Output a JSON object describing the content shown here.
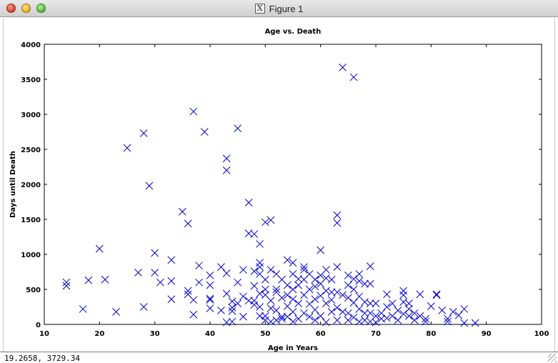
{
  "window": {
    "title": "Figure 1",
    "status_coords": "19.2658,  3729.34"
  },
  "chart_data": {
    "type": "scatter",
    "title": "Age vs. Death",
    "xlabel": "Age in Years",
    "ylabel": "Days until Death",
    "xlim": [
      10,
      100
    ],
    "ylim": [
      0,
      4000
    ],
    "xticks": [
      10,
      20,
      30,
      40,
      50,
      60,
      70,
      80,
      90,
      100
    ],
    "yticks": [
      0,
      500,
      1000,
      1500,
      2000,
      2500,
      3000,
      3500,
      4000
    ],
    "grid": false,
    "marker": "x",
    "color": "#0000cc",
    "series": [
      {
        "points": [
          [
            14,
            600
          ],
          [
            14,
            550
          ],
          [
            17,
            220
          ],
          [
            18,
            630
          ],
          [
            20,
            1080
          ],
          [
            21,
            640
          ],
          [
            23,
            180
          ],
          [
            25,
            2520
          ],
          [
            27,
            740
          ],
          [
            28,
            2730
          ],
          [
            28,
            250
          ],
          [
            29,
            1980
          ],
          [
            30,
            1020
          ],
          [
            30,
            740
          ],
          [
            31,
            600
          ],
          [
            33,
            920
          ],
          [
            33,
            620
          ],
          [
            33,
            360
          ],
          [
            35,
            1610
          ],
          [
            36,
            1440
          ],
          [
            36,
            480
          ],
          [
            36,
            430
          ],
          [
            37,
            3040
          ],
          [
            37,
            350
          ],
          [
            37,
            140
          ],
          [
            38,
            840
          ],
          [
            38,
            600
          ],
          [
            39,
            2750
          ],
          [
            40,
            700
          ],
          [
            40,
            560
          ],
          [
            40,
            370
          ],
          [
            40,
            350
          ],
          [
            40,
            230
          ],
          [
            42,
            820
          ],
          [
            42,
            200
          ],
          [
            43,
            2370
          ],
          [
            43,
            2200
          ],
          [
            43,
            730
          ],
          [
            43,
            440
          ],
          [
            43,
            30
          ],
          [
            44,
            330
          ],
          [
            44,
            240
          ],
          [
            44,
            190
          ],
          [
            44,
            40
          ],
          [
            45,
            2800
          ],
          [
            45,
            600
          ],
          [
            45,
            300
          ],
          [
            46,
            780
          ],
          [
            46,
            400
          ],
          [
            46,
            110
          ],
          [
            47,
            1740
          ],
          [
            47,
            1300
          ],
          [
            47,
            340
          ],
          [
            48,
            1290
          ],
          [
            48,
            760
          ],
          [
            48,
            550
          ],
          [
            48,
            340
          ],
          [
            48,
            280
          ],
          [
            49,
            1150
          ],
          [
            49,
            880
          ],
          [
            49,
            820
          ],
          [
            49,
            720
          ],
          [
            49,
            440
          ],
          [
            49,
            250
          ],
          [
            49,
            120
          ],
          [
            50,
            1460
          ],
          [
            50,
            640
          ],
          [
            50,
            500
          ],
          [
            50,
            420
          ],
          [
            50,
            120
          ],
          [
            50,
            60
          ],
          [
            51,
            1490
          ],
          [
            51,
            780
          ],
          [
            51,
            340
          ],
          [
            51,
            230
          ],
          [
            51,
            40
          ],
          [
            52,
            720
          ],
          [
            52,
            500
          ],
          [
            52,
            460
          ],
          [
            52,
            200
          ],
          [
            52,
            60
          ],
          [
            53,
            640
          ],
          [
            53,
            380
          ],
          [
            53,
            110
          ],
          [
            53,
            80
          ],
          [
            54,
            920
          ],
          [
            54,
            560
          ],
          [
            54,
            420
          ],
          [
            54,
            260
          ],
          [
            54,
            110
          ],
          [
            55,
            880
          ],
          [
            55,
            720
          ],
          [
            55,
            500
          ],
          [
            55,
            360
          ],
          [
            55,
            180
          ],
          [
            55,
            40
          ],
          [
            56,
            650
          ],
          [
            56,
            560
          ],
          [
            56,
            300
          ],
          [
            56,
            80
          ],
          [
            57,
            820
          ],
          [
            57,
            780
          ],
          [
            57,
            640
          ],
          [
            57,
            420
          ],
          [
            57,
            160
          ],
          [
            58,
            720
          ],
          [
            58,
            500
          ],
          [
            58,
            290
          ],
          [
            58,
            110
          ],
          [
            59,
            640
          ],
          [
            59,
            540
          ],
          [
            59,
            360
          ],
          [
            59,
            210
          ],
          [
            59,
            60
          ],
          [
            60,
            1060
          ],
          [
            60,
            700
          ],
          [
            60,
            580
          ],
          [
            60,
            410
          ],
          [
            60,
            120
          ],
          [
            61,
            780
          ],
          [
            61,
            660
          ],
          [
            61,
            480
          ],
          [
            61,
            300
          ],
          [
            61,
            30
          ],
          [
            62,
            640
          ],
          [
            62,
            460
          ],
          [
            62,
            350
          ],
          [
            62,
            180
          ],
          [
            63,
            1560
          ],
          [
            63,
            1450
          ],
          [
            63,
            820
          ],
          [
            63,
            460
          ],
          [
            63,
            240
          ],
          [
            63,
            60
          ],
          [
            64,
            3670
          ],
          [
            64,
            420
          ],
          [
            64,
            180
          ],
          [
            65,
            700
          ],
          [
            65,
            560
          ],
          [
            65,
            380
          ],
          [
            65,
            160
          ],
          [
            65,
            60
          ],
          [
            66,
            3530
          ],
          [
            66,
            650
          ],
          [
            66,
            500
          ],
          [
            66,
            310
          ],
          [
            66,
            100
          ],
          [
            67,
            720
          ],
          [
            67,
            620
          ],
          [
            67,
            400
          ],
          [
            67,
            220
          ],
          [
            67,
            40
          ],
          [
            68,
            580
          ],
          [
            68,
            320
          ],
          [
            68,
            160
          ],
          [
            68,
            60
          ],
          [
            69,
            830
          ],
          [
            69,
            580
          ],
          [
            69,
            300
          ],
          [
            69,
            160
          ],
          [
            69,
            40
          ],
          [
            70,
            300
          ],
          [
            70,
            120
          ],
          [
            70,
            30
          ],
          [
            71,
            160
          ],
          [
            71,
            80
          ],
          [
            72,
            430
          ],
          [
            72,
            250
          ],
          [
            72,
            90
          ],
          [
            73,
            300
          ],
          [
            73,
            120
          ],
          [
            74,
            200
          ],
          [
            74,
            60
          ],
          [
            75,
            480
          ],
          [
            75,
            420
          ],
          [
            75,
            320
          ],
          [
            75,
            150
          ],
          [
            76,
            300
          ],
          [
            76,
            220
          ],
          [
            76,
            120
          ],
          [
            77,
            160
          ],
          [
            77,
            60
          ],
          [
            78,
            430
          ],
          [
            78,
            120
          ],
          [
            79,
            80
          ],
          [
            79,
            40
          ],
          [
            80,
            260
          ],
          [
            81,
            430
          ],
          [
            81,
            420
          ],
          [
            82,
            200
          ],
          [
            83,
            80
          ],
          [
            83,
            40
          ],
          [
            84,
            180
          ],
          [
            85,
            130
          ],
          [
            86,
            220
          ],
          [
            86,
            20
          ],
          [
            88,
            20
          ]
        ]
      }
    ]
  }
}
